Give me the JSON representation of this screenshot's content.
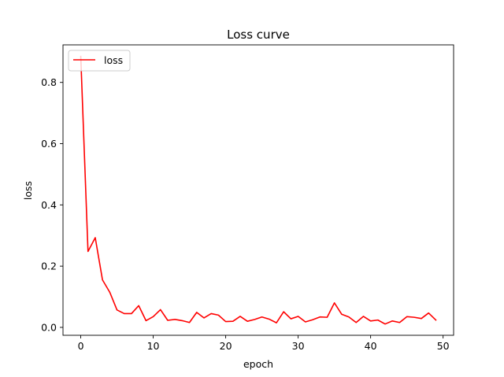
{
  "chart_data": {
    "type": "line",
    "title": "Loss curve",
    "xlabel": "epoch",
    "ylabel": "loss",
    "xlim": [
      -2.45,
      51.45
    ],
    "ylim": [
      -0.0258,
      0.9226
    ],
    "xticks": [
      0,
      10,
      20,
      30,
      40,
      50
    ],
    "xtick_labels": [
      "0",
      "10",
      "20",
      "30",
      "40",
      "50"
    ],
    "yticks": [
      0.0,
      0.2,
      0.4,
      0.6,
      0.8
    ],
    "ytick_labels": [
      "0.0",
      "0.2",
      "0.4",
      "0.6",
      "0.8"
    ],
    "grid": false,
    "legend": {
      "position": "top-left",
      "entries": [
        "loss"
      ]
    },
    "series": [
      {
        "name": "loss",
        "color": "#ff0000",
        "x": [
          0,
          1,
          2,
          3,
          4,
          5,
          6,
          7,
          8,
          9,
          10,
          11,
          12,
          13,
          14,
          15,
          16,
          17,
          18,
          19,
          20,
          21,
          22,
          23,
          24,
          25,
          26,
          27,
          28,
          29,
          30,
          31,
          32,
          33,
          34,
          35,
          36,
          37,
          38,
          39,
          40,
          41,
          42,
          43,
          44,
          45,
          46,
          47,
          48,
          49
        ],
        "values": [
          0.885,
          0.248,
          0.293,
          0.155,
          0.115,
          0.057,
          0.045,
          0.045,
          0.071,
          0.022,
          0.035,
          0.058,
          0.023,
          0.026,
          0.022,
          0.016,
          0.049,
          0.031,
          0.045,
          0.04,
          0.019,
          0.02,
          0.036,
          0.02,
          0.026,
          0.034,
          0.027,
          0.015,
          0.051,
          0.028,
          0.036,
          0.018,
          0.025,
          0.034,
          0.033,
          0.08,
          0.043,
          0.034,
          0.016,
          0.036,
          0.021,
          0.024,
          0.011,
          0.021,
          0.016,
          0.035,
          0.033,
          0.029,
          0.047,
          0.024
        ]
      }
    ]
  }
}
